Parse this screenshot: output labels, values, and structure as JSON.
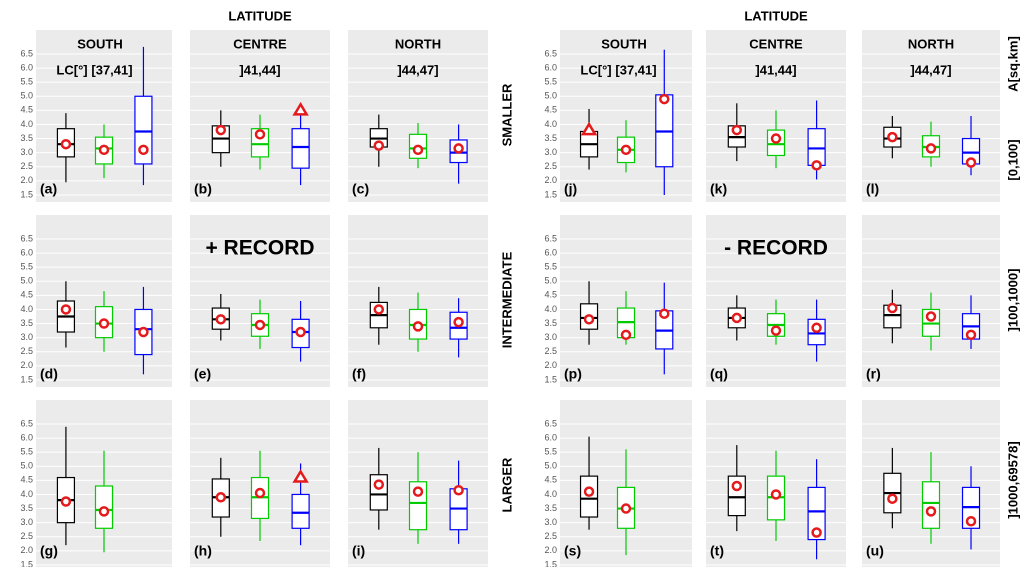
{
  "chart_data": {
    "type": "boxplot",
    "ylim": [
      1.25,
      7.35
    ],
    "yticks": [
      1.5,
      {
        "value": 2,
        "label": "2.0"
      },
      2.5,
      {
        "value": 3,
        "label": "3.0"
      },
      3.5,
      {
        "value": 4,
        "label": "4.0"
      },
      4.5,
      {
        "value": 5,
        "label": "5.0"
      },
      5.5,
      {
        "value": 6,
        "label": "6.0"
      },
      6.5
    ],
    "grid": true,
    "box_colors": [
      "#000000",
      "#00cc00",
      "#0000ff"
    ],
    "point_color": "#e41a1c",
    "area_title": "A[sq.km]",
    "rows": [
      {
        "name": "SMALLER",
        "area": "[0,100]"
      },
      {
        "name": "INTERMEDIATE",
        "area": "]100,1000]"
      },
      {
        "name": "LARGER",
        "area": "]1000,69578]"
      }
    ],
    "halves": [
      {
        "title": "LATITUDE",
        "record": "+ RECORD",
        "lc_label": "LC[°]",
        "columns": [
          {
            "region": "SOUTH",
            "range": "[37,41]"
          },
          {
            "region": "CENTRE",
            "range": "]41,44]"
          },
          {
            "region": "NORTH",
            "range": "]44,47]"
          }
        ],
        "panels": [
          {
            "label": "(a)",
            "boxes": [
              {
                "stats": [
                  1.95,
                  2.85,
                  3.3,
                  3.85,
                  4.4
                ],
                "mean": 3.3,
                "marker": "circle"
              },
              {
                "stats": [
                  2.1,
                  2.6,
                  3.15,
                  3.55,
                  4.0
                ],
                "mean": 3.1,
                "marker": "circle"
              },
              {
                "stats": [
                  1.85,
                  2.6,
                  3.75,
                  5.0,
                  6.75
                ],
                "mean": 3.1,
                "marker": "circle"
              }
            ]
          },
          {
            "label": "(b)",
            "boxes": [
              {
                "stats": [
                  2.5,
                  3.0,
                  3.5,
                  3.95,
                  4.5
                ],
                "mean": 3.8,
                "marker": "circle"
              },
              {
                "stats": [
                  2.4,
                  2.85,
                  3.3,
                  3.85,
                  4.35
                ],
                "mean": 3.65,
                "marker": "circle"
              },
              {
                "stats": [
                  1.85,
                  2.45,
                  3.2,
                  3.85,
                  4.6
                ],
                "mean": 4.5,
                "marker": "triangle"
              }
            ]
          },
          {
            "label": "(c)",
            "boxes": [
              {
                "stats": [
                  2.5,
                  3.2,
                  3.5,
                  3.85,
                  4.35
                ],
                "mean": 3.25,
                "marker": "circle"
              },
              {
                "stats": [
                  2.45,
                  2.8,
                  3.15,
                  3.65,
                  4.05
                ],
                "mean": 3.1,
                "marker": "circle"
              },
              {
                "stats": [
                  1.9,
                  2.65,
                  3.0,
                  3.45,
                  4.0
                ],
                "mean": 3.15,
                "marker": "circle"
              }
            ]
          },
          {
            "label": "(d)",
            "boxes": [
              {
                "stats": [
                  2.65,
                  3.2,
                  3.75,
                  4.3,
                  5.0
                ],
                "mean": 4.0,
                "marker": "circle"
              },
              {
                "stats": [
                  2.5,
                  3.0,
                  3.5,
                  4.1,
                  4.65
                ],
                "mean": 3.5,
                "marker": "circle"
              },
              {
                "stats": [
                  1.7,
                  2.4,
                  3.3,
                  4.0,
                  4.8
                ],
                "mean": 3.2,
                "marker": "circle"
              }
            ]
          },
          {
            "label": "(e)",
            "boxes": [
              {
                "stats": [
                  2.9,
                  3.3,
                  3.65,
                  4.05,
                  4.55
                ],
                "mean": 3.65,
                "marker": "circle"
              },
              {
                "stats": [
                  2.6,
                  3.05,
                  3.45,
                  3.85,
                  4.35
                ],
                "mean": 3.45,
                "marker": "circle"
              },
              {
                "stats": [
                  2.15,
                  2.65,
                  3.2,
                  3.65,
                  4.3
                ],
                "mean": 3.2,
                "marker": "circle"
              }
            ]
          },
          {
            "label": "(f)",
            "boxes": [
              {
                "stats": [
                  2.75,
                  3.35,
                  3.8,
                  4.25,
                  4.8
                ],
                "mean": 4.0,
                "marker": "circle"
              },
              {
                "stats": [
                  2.5,
                  2.95,
                  3.45,
                  4.0,
                  4.6
                ],
                "mean": 3.4,
                "marker": "circle"
              },
              {
                "stats": [
                  2.3,
                  2.95,
                  3.35,
                  3.9,
                  4.4
                ],
                "mean": 3.55,
                "marker": "circle"
              }
            ]
          },
          {
            "label": "(g)",
            "boxes": [
              {
                "stats": [
                  2.2,
                  3.0,
                  3.8,
                  4.6,
                  6.4
                ],
                "mean": 3.75,
                "marker": "circle"
              },
              {
                "stats": [
                  1.95,
                  2.8,
                  3.45,
                  4.3,
                  5.55
                ],
                "mean": 3.4,
                "marker": "circle"
              }
            ]
          },
          {
            "label": "(h)",
            "boxes": [
              {
                "stats": [
                  2.5,
                  3.2,
                  3.9,
                  4.55,
                  5.3
                ],
                "mean": 3.9,
                "marker": "circle"
              },
              {
                "stats": [
                  2.35,
                  3.15,
                  3.9,
                  4.6,
                  5.55
                ],
                "mean": 4.05,
                "marker": "circle"
              },
              {
                "stats": [
                  2.2,
                  2.8,
                  3.35,
                  4.0,
                  5.1
                ],
                "mean": 4.6,
                "marker": "triangle"
              }
            ]
          },
          {
            "label": "(i)",
            "boxes": [
              {
                "stats": [
                  2.75,
                  3.45,
                  4.0,
                  4.7,
                  5.65
                ],
                "mean": 4.35,
                "marker": "circle"
              },
              {
                "stats": [
                  2.25,
                  2.75,
                  3.7,
                  4.45,
                  5.5
                ],
                "mean": 4.1,
                "marker": "circle"
              },
              {
                "stats": [
                  2.25,
                  2.75,
                  3.5,
                  4.2,
                  5.2
                ],
                "mean": 4.15,
                "marker": "circle"
              }
            ]
          }
        ]
      },
      {
        "title": "LATITUDE",
        "record": "- RECORD",
        "lc_label": "LC[°]",
        "columns": [
          {
            "region": "SOUTH",
            "range": "[37,41]"
          },
          {
            "region": "CENTRE",
            "range": "]41,44]"
          },
          {
            "region": "NORTH",
            "range": "]44,47]"
          }
        ],
        "panels": [
          {
            "label": "(j)",
            "boxes": [
              {
                "stats": [
                  2.4,
                  2.85,
                  3.3,
                  3.75,
                  4.55
                ],
                "mean": 3.8,
                "marker": "triangle"
              },
              {
                "stats": [
                  2.3,
                  2.65,
                  3.1,
                  3.55,
                  4.15
                ],
                "mean": 3.1,
                "marker": "circle"
              },
              {
                "stats": [
                  1.5,
                  2.5,
                  3.75,
                  5.05,
                  6.65
                ],
                "mean": 4.9,
                "marker": "circle"
              }
            ]
          },
          {
            "label": "(k)",
            "boxes": [
              {
                "stats": [
                  2.7,
                  3.2,
                  3.55,
                  3.95,
                  4.75
                ],
                "mean": 3.8,
                "marker": "circle"
              },
              {
                "stats": [
                  2.45,
                  2.9,
                  3.3,
                  3.8,
                  4.5
                ],
                "mean": 3.5,
                "marker": "circle"
              },
              {
                "stats": [
                  2.05,
                  2.55,
                  3.15,
                  3.85,
                  4.85
                ],
                "mean": 2.55,
                "marker": "circle"
              }
            ]
          },
          {
            "label": "(l)",
            "boxes": [
              {
                "stats": [
                  2.8,
                  3.2,
                  3.5,
                  3.9,
                  4.3
                ],
                "mean": 3.55,
                "marker": "circle"
              },
              {
                "stats": [
                  2.5,
                  2.85,
                  3.2,
                  3.6,
                  4.1
                ],
                "mean": 3.15,
                "marker": "circle"
              },
              {
                "stats": [
                  2.2,
                  2.6,
                  3.0,
                  3.5,
                  4.3
                ],
                "mean": 2.65,
                "marker": "circle"
              }
            ]
          },
          {
            "label": "(p)",
            "boxes": [
              {
                "stats": [
                  2.75,
                  3.3,
                  3.7,
                  4.2,
                  5.0
                ],
                "mean": 3.65,
                "marker": "circle"
              },
              {
                "stats": [
                  2.75,
                  3.0,
                  3.55,
                  4.05,
                  4.65
                ],
                "mean": 3.1,
                "marker": "circle"
              },
              {
                "stats": [
                  1.7,
                  2.6,
                  3.25,
                  3.95,
                  4.95
                ],
                "mean": 3.85,
                "marker": "circle"
              }
            ]
          },
          {
            "label": "(q)",
            "boxes": [
              {
                "stats": [
                  2.9,
                  3.35,
                  3.7,
                  4.05,
                  4.5
                ],
                "mean": 3.7,
                "marker": "circle"
              },
              {
                "stats": [
                  2.75,
                  3.05,
                  3.45,
                  3.85,
                  4.35
                ],
                "mean": 3.25,
                "marker": "circle"
              },
              {
                "stats": [
                  2.15,
                  2.75,
                  3.15,
                  3.65,
                  4.35
                ],
                "mean": 3.35,
                "marker": "circle"
              }
            ]
          },
          {
            "label": "(r)",
            "boxes": [
              {
                "stats": [
                  2.8,
                  3.35,
                  3.8,
                  4.15,
                  4.7
                ],
                "mean": 4.05,
                "marker": "circle"
              },
              {
                "stats": [
                  2.55,
                  3.05,
                  3.5,
                  4.0,
                  4.6
                ],
                "mean": 3.75,
                "marker": "circle"
              },
              {
                "stats": [
                  2.6,
                  2.95,
                  3.4,
                  3.85,
                  4.5
                ],
                "mean": 3.1,
                "marker": "circle"
              }
            ]
          },
          {
            "label": "(s)",
            "boxes": [
              {
                "stats": [
                  2.75,
                  3.2,
                  3.85,
                  4.65,
                  6.05
                ],
                "mean": 4.1,
                "marker": "circle"
              },
              {
                "stats": [
                  1.85,
                  2.8,
                  3.5,
                  4.25,
                  5.6
                ],
                "mean": 3.5,
                "marker": "circle"
              }
            ]
          },
          {
            "label": "(t)",
            "boxes": [
              {
                "stats": [
                  2.7,
                  3.25,
                  3.9,
                  4.65,
                  5.75
                ],
                "mean": 4.3,
                "marker": "circle"
              },
              {
                "stats": [
                  2.35,
                  3.1,
                  3.9,
                  4.65,
                  5.55
                ],
                "mean": 4.0,
                "marker": "circle"
              },
              {
                "stats": [
                  1.7,
                  2.4,
                  3.4,
                  4.25,
                  5.25
                ],
                "mean": 2.65,
                "marker": "circle"
              }
            ]
          },
          {
            "label": "(u)",
            "boxes": [
              {
                "stats": [
                  2.8,
                  3.35,
                  4.05,
                  4.75,
                  5.65
                ],
                "mean": 3.85,
                "marker": "circle"
              },
              {
                "stats": [
                  2.25,
                  2.8,
                  3.7,
                  4.45,
                  5.5
                ],
                "mean": 3.4,
                "marker": "circle"
              },
              {
                "stats": [
                  2.05,
                  2.8,
                  3.55,
                  4.25,
                  5.0
                ],
                "mean": 3.05,
                "marker": "circle"
              }
            ]
          }
        ]
      }
    ]
  }
}
